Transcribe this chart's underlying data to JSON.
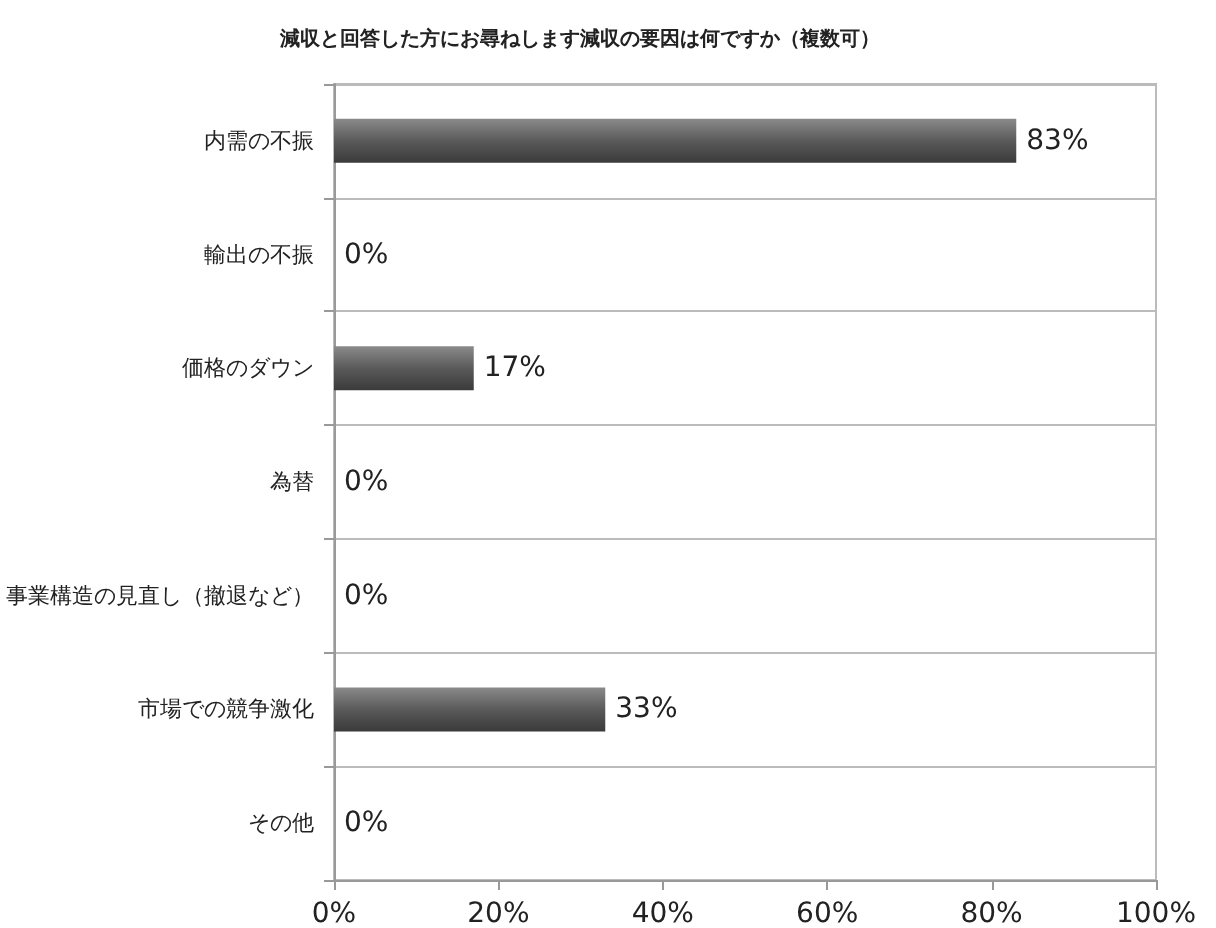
{
  "chart_data": {
    "type": "bar",
    "orientation": "horizontal",
    "title": "減収と回答した方にお尋ねします減収の要因は何ですか（複数可）",
    "categories": [
      "内需の不振",
      "輸出の不振",
      "価格のダウン",
      "為替",
      "事業構造の見直し（撤退など）",
      "市場での競争激化",
      "その他"
    ],
    "values": [
      83,
      0,
      17,
      0,
      0,
      33,
      0
    ],
    "value_labels": [
      "83%",
      "0%",
      "17%",
      "0%",
      "0%",
      "33%",
      "0%"
    ],
    "color": "#5a5a5a",
    "xlim": [
      0,
      100
    ],
    "xticks": [
      {
        "value": 0,
        "label": "0%"
      },
      {
        "value": 20,
        "label": "20%"
      },
      {
        "value": 40,
        "label": "40%"
      },
      {
        "value": 60,
        "label": "60%"
      },
      {
        "value": 80,
        "label": "80%"
      },
      {
        "value": 100,
        "label": "100%"
      }
    ],
    "grid": "y"
  }
}
